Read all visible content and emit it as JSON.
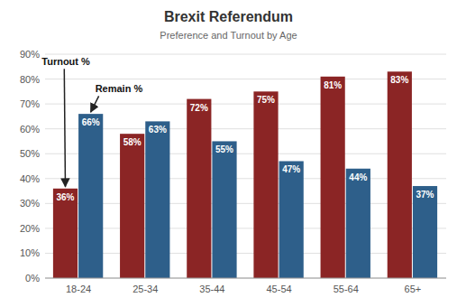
{
  "chart_data": {
    "type": "bar",
    "title": "Brexit Referendum",
    "subtitle": "Preference and Turnout by Age",
    "categories": [
      "18-24",
      "25-34",
      "35-44",
      "45-54",
      "55-64",
      "65+"
    ],
    "series": [
      {
        "name": "Turnout %",
        "color": "#8B2525",
        "values": [
          36,
          58,
          72,
          75,
          81,
          83
        ],
        "value_labels": [
          "36%",
          "58%",
          "72%",
          "75%",
          "81%",
          "83%"
        ]
      },
      {
        "name": "Remain %",
        "color": "#2E5F8A",
        "values": [
          66,
          63,
          55,
          47,
          44,
          37
        ],
        "value_labels": [
          "66%",
          "63%",
          "55%",
          "47%",
          "44%",
          "37%"
        ]
      }
    ],
    "ylim": [
      0,
      90
    ],
    "yticks": [
      {
        "value": 0,
        "label": "0%"
      },
      {
        "value": 10,
        "label": "10%"
      },
      {
        "value": 20,
        "label": "20%"
      },
      {
        "value": 30,
        "label": "30%"
      },
      {
        "value": 40,
        "label": "40%"
      },
      {
        "value": 50,
        "label": "50%"
      },
      {
        "value": 60,
        "label": "60%"
      },
      {
        "value": 70,
        "label": "70%"
      },
      {
        "value": 80,
        "label": "80%"
      },
      {
        "value": 90,
        "label": "90%"
      }
    ],
    "grid": true,
    "data_labels": true
  }
}
